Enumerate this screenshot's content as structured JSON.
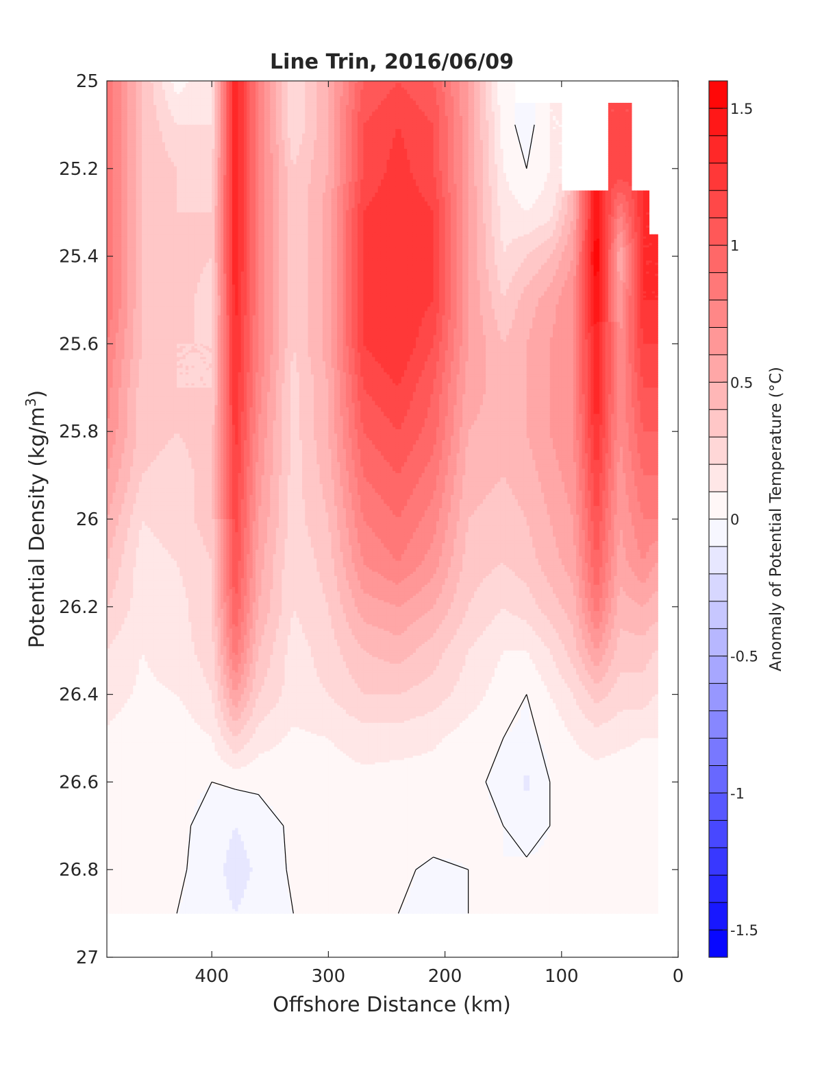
{
  "chart_data": {
    "type": "heatmap",
    "subtype": "filled-contour",
    "title": "Line Trin, 2016/06/09",
    "xlabel": "Offshore Distance (km)",
    "ylabel": "Potential Density (kg/m",
    "ylabel_sup": "3",
    "ylabel_close": ")",
    "colorbar_label": "Anomaly of Potential Temperature (°C)",
    "xlim": [
      490,
      0
    ],
    "ylim": [
      25,
      27
    ],
    "x_reversed": true,
    "y_reversed": true,
    "x_ticks": [
      400,
      300,
      200,
      100,
      0
    ],
    "y_ticks": [
      25,
      25.2,
      25.4,
      25.6,
      25.8,
      26,
      26.2,
      26.4,
      26.6,
      26.8,
      27
    ],
    "x_tick_labels": [
      "400",
      "300",
      "200",
      "100",
      "0"
    ],
    "y_tick_labels": [
      "25",
      "25.2",
      "25.4",
      "25.6",
      "25.8",
      "26",
      "26.2",
      "26.4",
      "26.6",
      "26.8",
      "27"
    ],
    "colorbar_ticks": [
      1.5,
      1,
      0.5,
      0,
      -0.5,
      -1,
      -1.5
    ],
    "colorbar_tick_labels": [
      "1.5",
      "1",
      "0.5",
      "0",
      "-0.5",
      "-1",
      "-1.5"
    ],
    "clim": [
      -1.6,
      1.6
    ],
    "contour_step": 0.1,
    "colormap": {
      "negative": "#0000ff",
      "zero": "#ffffff",
      "positive": "#ff0000"
    },
    "x_coverage_km": [
      20,
      490
    ],
    "x": [
      490,
      460,
      430,
      400,
      380,
      360,
      330,
      300,
      270,
      240,
      210,
      180,
      150,
      130,
      110,
      90,
      70,
      50,
      30,
      20
    ],
    "y": [
      25.0,
      25.1,
      25.2,
      25.3,
      25.4,
      25.5,
      25.6,
      25.7,
      25.8,
      25.9,
      26.0,
      26.1,
      26.2,
      26.3,
      26.4,
      26.5,
      26.6,
      26.7,
      26.8,
      26.9
    ],
    "z": [
      [
        0.9,
        0.4,
        0.05,
        0.2,
        1.4,
        0.8,
        0.2,
        0.5,
        1.0,
        1.1,
        1.0,
        0.6,
        0.0,
        null,
        null,
        null,
        null,
        null,
        null,
        null
      ],
      [
        0.9,
        0.4,
        0.2,
        0.2,
        1.4,
        0.8,
        0.2,
        0.5,
        1.1,
        1.2,
        1.1,
        0.6,
        0.05,
        -0.05,
        0.1,
        null,
        null,
        1.1,
        null,
        null
      ],
      [
        0.9,
        0.4,
        0.3,
        0.25,
        1.4,
        0.8,
        0.3,
        0.5,
        1.1,
        1.25,
        1.1,
        0.6,
        0.1,
        0.0,
        0.1,
        null,
        null,
        1.2,
        null,
        null
      ],
      [
        0.9,
        0.4,
        0.3,
        0.3,
        1.4,
        0.8,
        0.3,
        0.55,
        1.2,
        1.3,
        1.2,
        0.6,
        0.15,
        0.1,
        0.15,
        0.5,
        1.5,
        0.8,
        1.3,
        null
      ],
      [
        0.9,
        0.4,
        0.35,
        0.3,
        1.4,
        0.8,
        0.3,
        0.55,
        1.2,
        1.3,
        1.2,
        0.6,
        0.2,
        0.3,
        0.4,
        0.6,
        1.6,
        0.5,
        1.3,
        1.3
      ],
      [
        0.9,
        0.4,
        0.35,
        0.25,
        1.35,
        0.8,
        0.3,
        0.55,
        1.2,
        1.3,
        1.2,
        0.6,
        0.3,
        0.45,
        0.55,
        0.7,
        1.5,
        0.6,
        1.3,
        1.3
      ],
      [
        0.8,
        0.4,
        0.3,
        0.3,
        1.3,
        0.8,
        0.3,
        0.55,
        1.2,
        1.3,
        1.1,
        0.6,
        0.4,
        0.5,
        0.6,
        0.7,
        1.4,
        0.7,
        1.2,
        1.2
      ],
      [
        0.75,
        0.35,
        0.3,
        0.3,
        1.3,
        0.75,
        0.25,
        0.5,
        1.1,
        1.2,
        1.0,
        0.55,
        0.45,
        0.5,
        0.6,
        0.7,
        1.4,
        0.7,
        1.1,
        1.1
      ],
      [
        0.7,
        0.35,
        0.3,
        0.35,
        1.25,
        0.7,
        0.25,
        0.5,
        1.0,
        1.1,
        0.95,
        0.5,
        0.45,
        0.5,
        0.6,
        0.7,
        1.3,
        0.7,
        1.0,
        1.0
      ],
      [
        0.6,
        0.3,
        0.25,
        0.35,
        1.2,
        0.65,
        0.25,
        0.45,
        0.9,
        1.0,
        0.85,
        0.45,
        0.4,
        0.45,
        0.55,
        0.65,
        1.2,
        0.65,
        0.9,
        0.9
      ],
      [
        0.5,
        0.2,
        0.25,
        0.35,
        1.15,
        0.6,
        0.25,
        0.4,
        0.8,
        0.9,
        0.75,
        0.4,
        0.35,
        0.4,
        0.5,
        0.6,
        1.1,
        0.6,
        0.8,
        0.8
      ],
      [
        0.4,
        0.15,
        0.2,
        0.3,
        1.1,
        0.55,
        0.2,
        0.35,
        0.7,
        0.8,
        0.65,
        0.35,
        0.3,
        0.35,
        0.45,
        0.55,
        1.0,
        0.55,
        0.7,
        0.6
      ],
      [
        0.3,
        0.15,
        0.15,
        0.3,
        1.0,
        0.5,
        0.2,
        0.3,
        0.55,
        0.6,
        0.5,
        0.3,
        0.2,
        0.25,
        0.35,
        0.45,
        0.85,
        0.45,
        0.5,
        0.45
      ],
      [
        0.2,
        0.1,
        0.15,
        0.25,
        0.85,
        0.4,
        0.15,
        0.25,
        0.4,
        0.45,
        0.35,
        0.2,
        0.1,
        0.1,
        0.2,
        0.35,
        0.6,
        0.35,
        0.35,
        0.3
      ],
      [
        0.15,
        0.08,
        0.1,
        0.2,
        0.6,
        0.3,
        0.15,
        0.2,
        0.3,
        0.3,
        0.25,
        0.15,
        0.05,
        0.0,
        0.1,
        0.2,
        0.35,
        0.25,
        0.25,
        0.2
      ],
      [
        0.08,
        0.03,
        0.03,
        0.1,
        0.3,
        0.15,
        0.08,
        0.1,
        0.15,
        0.15,
        0.12,
        0.05,
        0.0,
        -0.02,
        0.02,
        0.1,
        0.15,
        0.12,
        0.1,
        0.1
      ],
      [
        0.03,
        0.0,
        0.02,
        0.0,
        0.02,
        0.02,
        0.05,
        0.05,
        0.07,
        0.05,
        0.05,
        0.02,
        -0.02,
        -0.12,
        0.0,
        0.05,
        0.05,
        0.05,
        0.05,
        0.05
      ],
      [
        0.08,
        0.03,
        0.02,
        -0.03,
        -0.1,
        -0.05,
        0.02,
        0.05,
        0.08,
        0.05,
        0.05,
        0.02,
        0.0,
        -0.05,
        0.0,
        0.02,
        0.02,
        0.03,
        0.03,
        0.03
      ],
      [
        0.1,
        0.03,
        0.02,
        -0.05,
        -0.15,
        -0.08,
        0.02,
        0.05,
        0.05,
        0.02,
        -0.02,
        0.0,
        0.0,
        0.02,
        0.02,
        0.0,
        0.02,
        0.03,
        0.02,
        0.02
      ],
      [
        0.05,
        0.02,
        0.0,
        -0.03,
        -0.1,
        -0.05,
        0.0,
        0.02,
        0.02,
        0.0,
        -0.02,
        0.0,
        0.0,
        0.0,
        0.0,
        0.0,
        0.02,
        0.02,
        0.0,
        0.0
      ]
    ],
    "colors": {
      "axis": "#262626",
      "contour_line": "#000000",
      "background": "#ffffff"
    }
  }
}
